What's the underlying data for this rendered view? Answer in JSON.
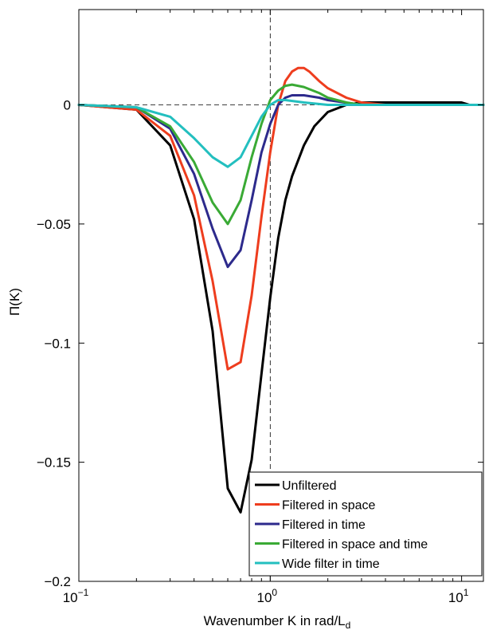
{
  "chart_data": {
    "type": "line",
    "title": "",
    "xlabel": "Wavenumber K in rad/L",
    "xlabel_sub": "d",
    "ylabel": "Π(K)",
    "xscale": "log",
    "xlim": [
      0.1,
      13
    ],
    "ylim": [
      -0.2,
      0.04
    ],
    "xticks": [
      {
        "value": 0.1,
        "base": "10",
        "exp": "−1"
      },
      {
        "value": 1,
        "base": "10",
        "exp": "0"
      },
      {
        "value": 10,
        "base": "10",
        "exp": "1"
      }
    ],
    "yticks": [
      {
        "value": 0,
        "label": "0"
      },
      {
        "value": -0.05,
        "label": "−0.05"
      },
      {
        "value": -0.1,
        "label": "−0.1"
      },
      {
        "value": -0.15,
        "label": "−0.15"
      },
      {
        "value": -0.2,
        "label": "−0.2"
      }
    ],
    "reference_lines": {
      "y": 0,
      "x": 1,
      "style": "dashed"
    },
    "grid": false,
    "legend_position": "bottom-right",
    "series": [
      {
        "name": "Unfiltered",
        "color": "#000000",
        "x": [
          0.1,
          0.2,
          0.3,
          0.4,
          0.5,
          0.6,
          0.7,
          0.8,
          0.9,
          1.0,
          1.1,
          1.2,
          1.3,
          1.5,
          1.7,
          2.0,
          2.5,
          3.0,
          4.0,
          5.0,
          7.0,
          10.0,
          11.0,
          13.0
        ],
        "y": [
          0.0,
          -0.002,
          -0.017,
          -0.048,
          -0.095,
          -0.161,
          -0.171,
          -0.149,
          -0.113,
          -0.081,
          -0.056,
          -0.04,
          -0.03,
          -0.017,
          -0.009,
          -0.003,
          0.0,
          0.001,
          0.001,
          0.001,
          0.001,
          0.001,
          0.0,
          0.0
        ]
      },
      {
        "name": "Filtered in space",
        "color": "#ee3d1e",
        "x": [
          0.1,
          0.2,
          0.3,
          0.4,
          0.5,
          0.6,
          0.7,
          0.8,
          0.9,
          1.0,
          1.1,
          1.2,
          1.3,
          1.4,
          1.5,
          1.6,
          1.8,
          2.0,
          2.5,
          3.0,
          4.0,
          5.0,
          10.0,
          13.0
        ],
        "y": [
          0.0,
          -0.002,
          -0.013,
          -0.038,
          -0.074,
          -0.111,
          -0.108,
          -0.08,
          -0.047,
          -0.02,
          0.0,
          0.01,
          0.014,
          0.0155,
          0.0155,
          0.014,
          0.01,
          0.007,
          0.003,
          0.001,
          0.0,
          0.0,
          0.0,
          0.0
        ]
      },
      {
        "name": "Filtered in time",
        "color": "#2d2a8c",
        "x": [
          0.1,
          0.2,
          0.3,
          0.4,
          0.5,
          0.6,
          0.7,
          0.8,
          0.9,
          1.0,
          1.1,
          1.2,
          1.3,
          1.5,
          1.8,
          2.0,
          3.0,
          5.0,
          10.0,
          13.0
        ],
        "y": [
          0.0,
          -0.001,
          -0.01,
          -0.029,
          -0.052,
          -0.068,
          -0.061,
          -0.04,
          -0.02,
          -0.008,
          0.0,
          0.003,
          0.004,
          0.004,
          0.003,
          0.002,
          0.0,
          0.0,
          0.0,
          0.0
        ]
      },
      {
        "name": "Filtered in space and time",
        "color": "#3aaa35",
        "x": [
          0.1,
          0.2,
          0.3,
          0.4,
          0.5,
          0.6,
          0.7,
          0.8,
          0.9,
          1.0,
          1.1,
          1.2,
          1.3,
          1.5,
          1.8,
          2.0,
          2.5,
          3.0,
          5.0,
          10.0,
          13.0
        ],
        "y": [
          0.0,
          -0.001,
          -0.009,
          -0.024,
          -0.041,
          -0.05,
          -0.04,
          -0.022,
          -0.008,
          0.002,
          0.006,
          0.008,
          0.0085,
          0.0075,
          0.005,
          0.003,
          0.001,
          0.0,
          0.0,
          0.0,
          0.0
        ]
      },
      {
        "name": "Wide filter in time",
        "color": "#23bfbf",
        "x": [
          0.1,
          0.2,
          0.3,
          0.4,
          0.5,
          0.6,
          0.7,
          0.8,
          0.9,
          1.0,
          1.1,
          1.2,
          1.5,
          2.0,
          3.0,
          5.0,
          10.0,
          13.0
        ],
        "y": [
          0.0,
          -0.001,
          -0.005,
          -0.014,
          -0.022,
          -0.026,
          -0.022,
          -0.013,
          -0.005,
          0.0,
          0.002,
          0.002,
          0.001,
          0.0,
          0.0,
          0.0,
          0.0,
          0.0
        ]
      }
    ]
  }
}
